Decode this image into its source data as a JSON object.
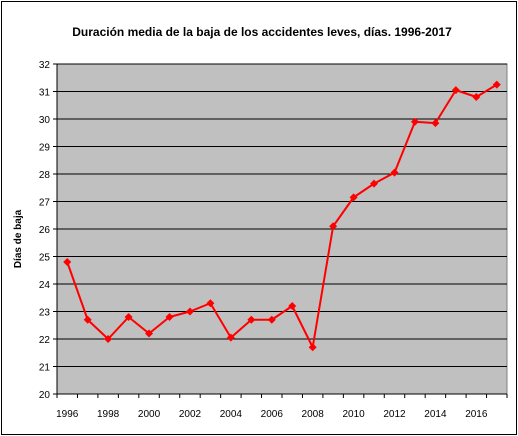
{
  "chart_data": {
    "type": "line",
    "title": "Duración media de la baja de los accidentes leves, días. 1996-2017",
    "xlabel": "",
    "ylabel": "Días de baja",
    "ylim": [
      20,
      32
    ],
    "yticks": [
      20,
      21,
      22,
      23,
      24,
      25,
      26,
      27,
      28,
      29,
      30,
      31,
      32
    ],
    "xlim": [
      1996,
      2018
    ],
    "xticks": [
      1996,
      1998,
      2000,
      2002,
      2004,
      2006,
      2008,
      2010,
      2012,
      2014,
      2016
    ],
    "grid": "horizontal",
    "legend": "none",
    "series": [
      {
        "color": "#ff0000",
        "x": [
          1996,
          1997,
          1998,
          1999,
          2000,
          2001,
          2002,
          2003,
          2004,
          2005,
          2006,
          2007,
          2008,
          2009,
          2010,
          2011,
          2012,
          2013,
          2014,
          2015,
          2016,
          2017
        ],
        "values": [
          24.8,
          22.7,
          22.0,
          22.8,
          22.2,
          22.8,
          23.0,
          23.3,
          22.05,
          22.7,
          22.7,
          23.2,
          21.7,
          26.1,
          27.15,
          27.65,
          28.05,
          29.9,
          29.85,
          31.05,
          30.8,
          31.25
        ]
      }
    ],
    "colors": {
      "plot_bg": "#c0c0c0",
      "grid": "#000000",
      "line": "#ff0000"
    }
  }
}
